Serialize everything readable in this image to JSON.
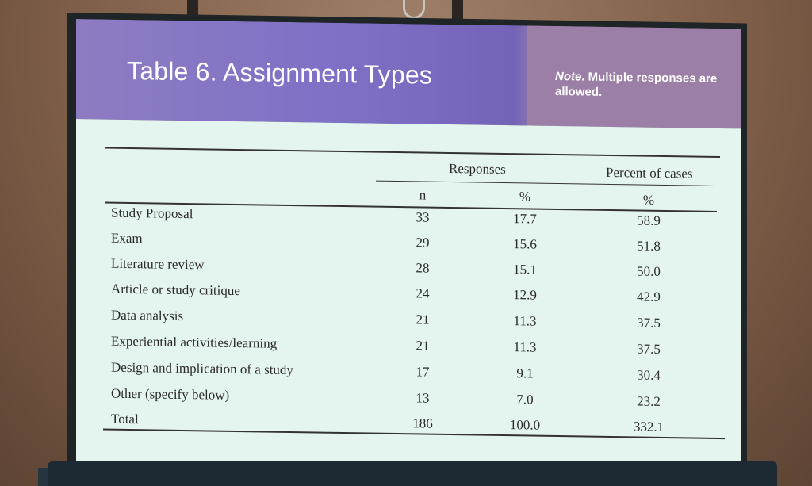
{
  "slide": {
    "title": "Table 6. Assignment Types",
    "note_label": "Note.",
    "note_text": "Multiple responses are allowed."
  },
  "table": {
    "group_headers": [
      "Responses",
      "Percent of cases"
    ],
    "sub_headers": [
      "n",
      "%",
      "%"
    ],
    "rows": [
      {
        "label": "Study Proposal",
        "n": "33",
        "pct": "17.7",
        "cases": "58.9"
      },
      {
        "label": "Exam",
        "n": "29",
        "pct": "15.6",
        "cases": "51.8"
      },
      {
        "label": "Literature review",
        "n": "28",
        "pct": "15.1",
        "cases": "50.0"
      },
      {
        "label": "Article or study critique",
        "n": "24",
        "pct": "12.9",
        "cases": "42.9"
      },
      {
        "label": "Data analysis",
        "n": "21",
        "pct": "11.3",
        "cases": "37.5"
      },
      {
        "label": "Experiential activities/learning",
        "n": "21",
        "pct": "11.3",
        "cases": "37.5"
      },
      {
        "label": "Design and implication of a study",
        "n": "17",
        "pct": "9.1",
        "cases": "30.4"
      },
      {
        "label": "Other (specify below)",
        "n": "13",
        "pct": "7.0",
        "cases": "23.2"
      },
      {
        "label": "Total",
        "n": "186",
        "pct": "100.0",
        "cases": "332.1"
      }
    ]
  }
}
